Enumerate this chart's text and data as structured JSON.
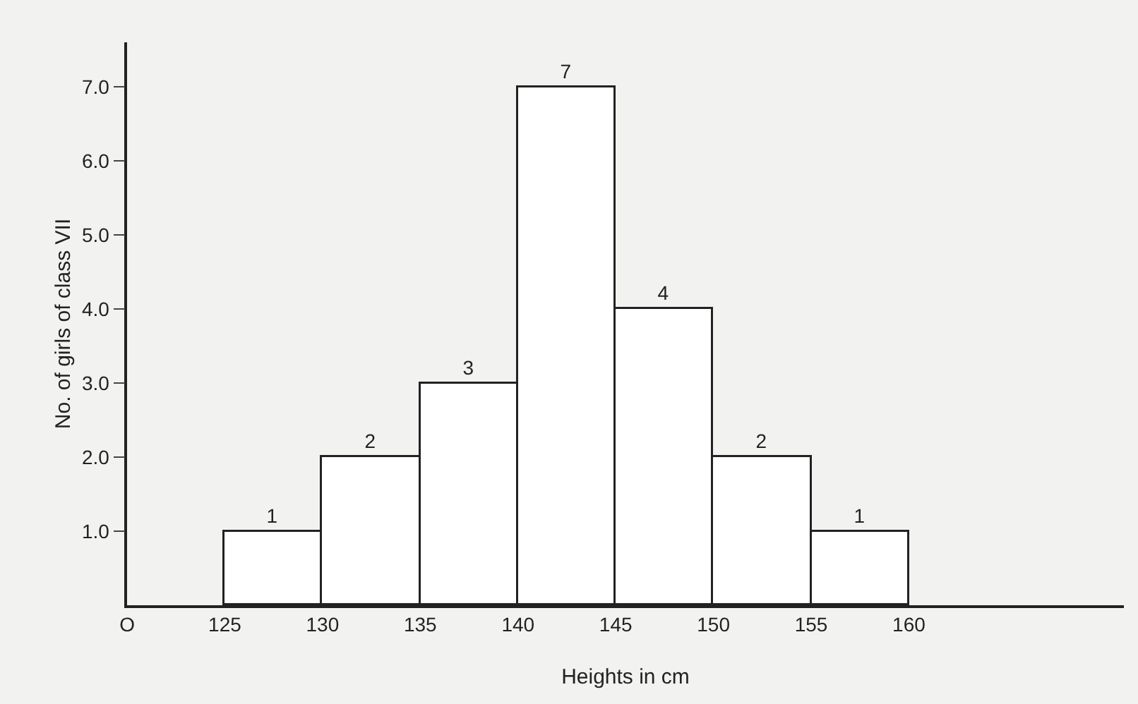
{
  "chart_data": {
    "type": "histogram",
    "bins": [
      125,
      130,
      135,
      140,
      145,
      150,
      155,
      160
    ],
    "values": [
      1,
      2,
      3,
      7,
      4,
      2,
      1
    ],
    "color": "#ffffff",
    "data_labels": true,
    "xlabel": "Heights in cm",
    "ylabel": "No. of girls of class VII",
    "xlim": [
      120,
      171
    ],
    "xticks": [
      {
        "value": 120,
        "label": "O"
      },
      125,
      130,
      135,
      140,
      145,
      150,
      155,
      160
    ],
    "ylim": [
      0,
      7.6
    ],
    "yticks": [
      {
        "value": 1,
        "label": "1.0"
      },
      {
        "value": 2,
        "label": "2.0"
      },
      {
        "value": 3,
        "label": "3.0"
      },
      {
        "value": 4,
        "label": "4.0"
      },
      {
        "value": 5,
        "label": "5.0"
      },
      {
        "value": 6,
        "label": "6.0"
      },
      {
        "value": 7,
        "label": "7.0"
      }
    ],
    "grid": false
  }
}
